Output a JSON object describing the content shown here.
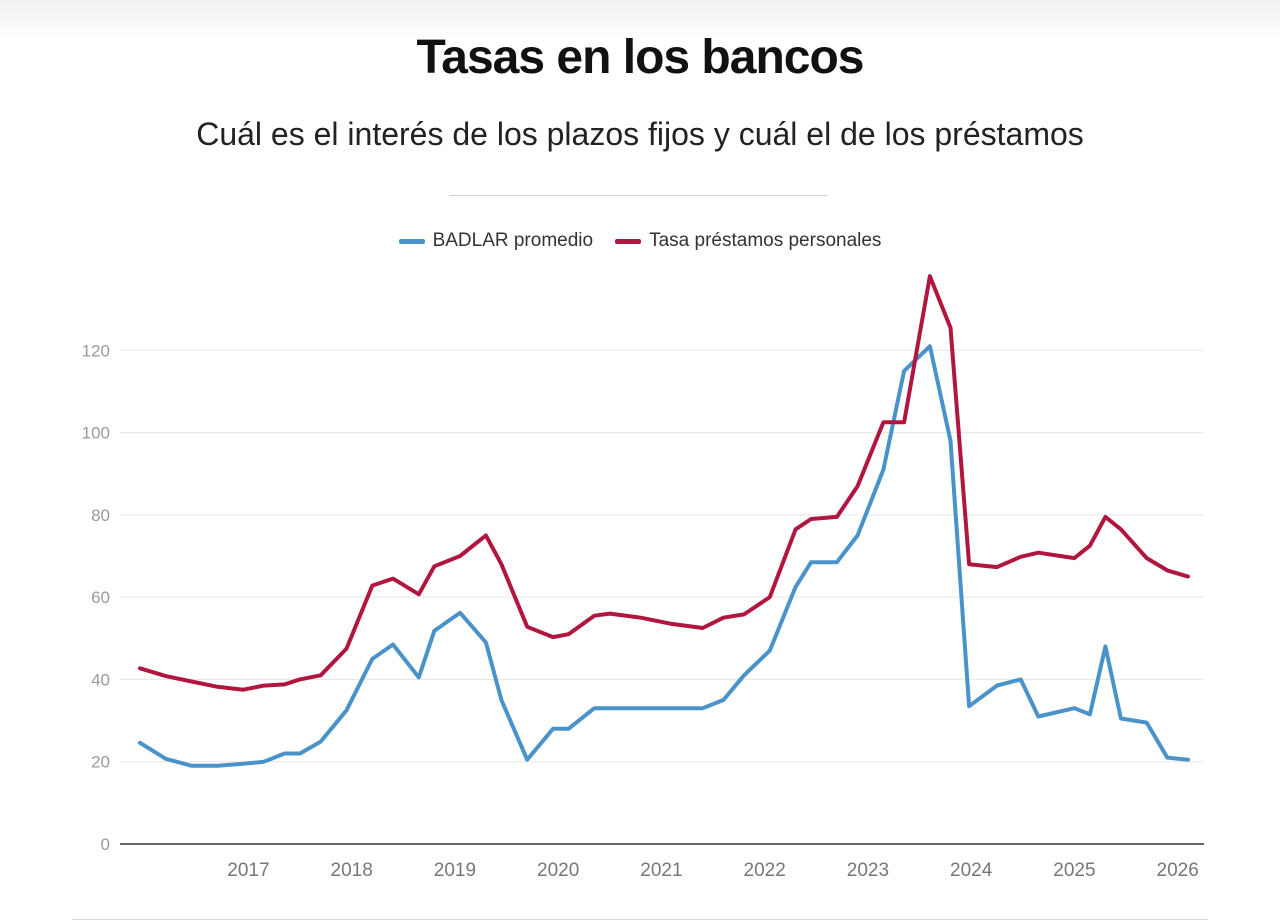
{
  "title": "Tasas en los bancos",
  "subtitle": "Cuál es el interés de los plazos fijos y cuál el de los préstamos",
  "colors": {
    "badlar": "#4a93c9",
    "prestamos": "#b0163e",
    "grid": "#e6e6e6",
    "tick": "#9a9a9a"
  },
  "chart_data": {
    "type": "line",
    "ylim": [
      0,
      140
    ],
    "yticks": [
      0,
      20,
      40,
      60,
      80,
      100,
      120
    ],
    "xlim": [
      2016.45,
      2026.6
    ],
    "xticks": [
      2017,
      2018,
      2019,
      2020,
      2021,
      2022,
      2023,
      2024,
      2025,
      2026
    ],
    "grid": true,
    "legend_position": "top-center",
    "series": [
      {
        "name": "BADLAR promedio",
        "color": "#4a93c9",
        "points": [
          [
            2016.45,
            24.6
          ],
          [
            2016.7,
            20.7
          ],
          [
            2016.95,
            19.0
          ],
          [
            2017.2,
            19.0
          ],
          [
            2017.45,
            19.5
          ],
          [
            2017.65,
            20.0
          ],
          [
            2017.85,
            22.0
          ],
          [
            2018.0,
            22.0
          ],
          [
            2018.2,
            24.9
          ],
          [
            2018.45,
            32.5
          ],
          [
            2018.7,
            45.0
          ],
          [
            2018.9,
            48.5
          ],
          [
            2019.15,
            40.5
          ],
          [
            2019.3,
            51.8
          ],
          [
            2019.55,
            56.2
          ],
          [
            2019.8,
            49.0
          ],
          [
            2019.95,
            35.0
          ],
          [
            2020.2,
            20.5
          ],
          [
            2020.45,
            28.0
          ],
          [
            2020.6,
            28.0
          ],
          [
            2020.85,
            33.0
          ],
          [
            2021.3,
            33.0
          ],
          [
            2021.9,
            33.0
          ],
          [
            2022.1,
            35.0
          ],
          [
            2022.3,
            41.0
          ],
          [
            2022.55,
            47.0
          ],
          [
            2022.8,
            62.5
          ],
          [
            2022.95,
            68.5
          ],
          [
            2023.2,
            68.5
          ],
          [
            2023.4,
            75.0
          ],
          [
            2023.65,
            91.0
          ],
          [
            2023.85,
            115.0
          ],
          [
            2024.1,
            121.0
          ],
          [
            2024.3,
            98.0
          ],
          [
            2024.48,
            33.5
          ],
          [
            2024.75,
            38.5
          ],
          [
            2024.98,
            40.0
          ],
          [
            2025.15,
            31.0
          ],
          [
            2025.5,
            33.0
          ],
          [
            2025.65,
            31.5
          ],
          [
            2025.8,
            48.0
          ],
          [
            2025.95,
            30.5
          ],
          [
            2026.2,
            29.5
          ],
          [
            2026.4,
            21.0
          ],
          [
            2026.6,
            20.5
          ]
        ]
      },
      {
        "name": "Tasa préstamos personales",
        "color": "#b0163e",
        "points": [
          [
            2016.45,
            42.7
          ],
          [
            2016.7,
            40.8
          ],
          [
            2016.95,
            39.5
          ],
          [
            2017.2,
            38.2
          ],
          [
            2017.45,
            37.5
          ],
          [
            2017.65,
            38.5
          ],
          [
            2017.85,
            38.8
          ],
          [
            2018.0,
            40.0
          ],
          [
            2018.2,
            41.0
          ],
          [
            2018.45,
            47.5
          ],
          [
            2018.7,
            62.8
          ],
          [
            2018.9,
            64.5
          ],
          [
            2019.15,
            60.7
          ],
          [
            2019.3,
            67.5
          ],
          [
            2019.55,
            70.0
          ],
          [
            2019.8,
            75.0
          ],
          [
            2019.95,
            68.0
          ],
          [
            2020.2,
            52.8
          ],
          [
            2020.45,
            50.3
          ],
          [
            2020.6,
            51.0
          ],
          [
            2020.85,
            55.5
          ],
          [
            2021.0,
            56.0
          ],
          [
            2021.3,
            55.0
          ],
          [
            2021.6,
            53.5
          ],
          [
            2021.9,
            52.5
          ],
          [
            2022.1,
            55.0
          ],
          [
            2022.3,
            55.8
          ],
          [
            2022.55,
            60.0
          ],
          [
            2022.8,
            76.5
          ],
          [
            2022.95,
            79.0
          ],
          [
            2023.2,
            79.5
          ],
          [
            2023.4,
            87.0
          ],
          [
            2023.65,
            102.5
          ],
          [
            2023.85,
            102.5
          ],
          [
            2024.1,
            138.0
          ],
          [
            2024.3,
            125.5
          ],
          [
            2024.48,
            68.0
          ],
          [
            2024.75,
            67.3
          ],
          [
            2024.98,
            69.8
          ],
          [
            2025.15,
            70.8
          ],
          [
            2025.5,
            69.5
          ],
          [
            2025.65,
            72.5
          ],
          [
            2025.8,
            79.5
          ],
          [
            2025.95,
            76.5
          ],
          [
            2026.2,
            69.5
          ],
          [
            2026.4,
            66.5
          ],
          [
            2026.6,
            65.0
          ]
        ]
      }
    ]
  }
}
